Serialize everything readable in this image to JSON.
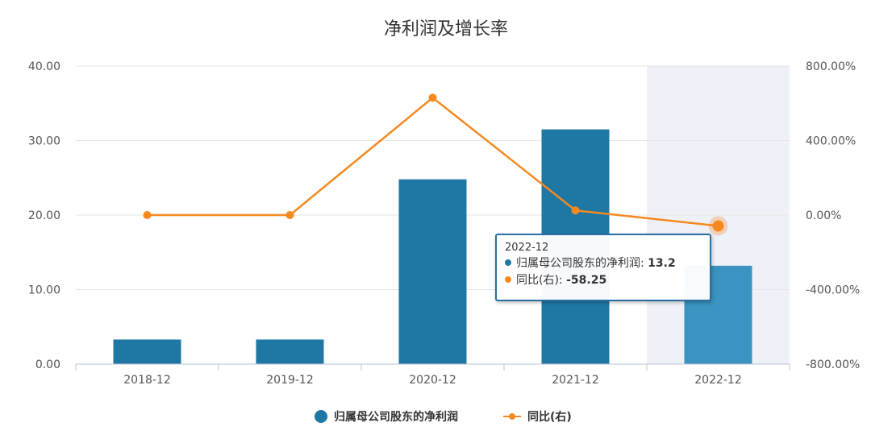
{
  "chart_data": {
    "type": "bar",
    "title": "净利润及增长率",
    "categories": [
      "2018-12",
      "2019-12",
      "2020-12",
      "2021-12",
      "2022-12"
    ],
    "series": [
      {
        "name": "归属母公司股东的净利润",
        "type": "bar",
        "axis": "left",
        "color": "#1f77a4",
        "highlight_color": "#3a93c0",
        "values": [
          3.3,
          3.3,
          24.8,
          31.5,
          13.2
        ]
      },
      {
        "name": "同比(右)",
        "type": "line",
        "axis": "right",
        "color": "#f5891f",
        "values": [
          0,
          0,
          630,
          25,
          -58.25
        ]
      }
    ],
    "left_axis": {
      "min": 0,
      "max": 40,
      "ticks": [
        "0.00",
        "10.00",
        "20.00",
        "30.00",
        "40.00"
      ]
    },
    "right_axis": {
      "min": -800,
      "max": 800,
      "ticks": [
        "-800.00%",
        "-400.00%",
        "0.00%",
        "400.00%",
        "800.00%"
      ]
    },
    "grid": true,
    "legend_position": "bottom",
    "highlighted_category": "2022-12"
  },
  "tooltip": {
    "header": "2022-12",
    "row1_label": "归属母公司股东的净利润: ",
    "row1_value": "13.2",
    "row2_label": "同比(右): ",
    "row2_value": "-58.25"
  },
  "legend": {
    "bar_label": "归属母公司股东的净利润",
    "line_label": "同比(右)"
  }
}
